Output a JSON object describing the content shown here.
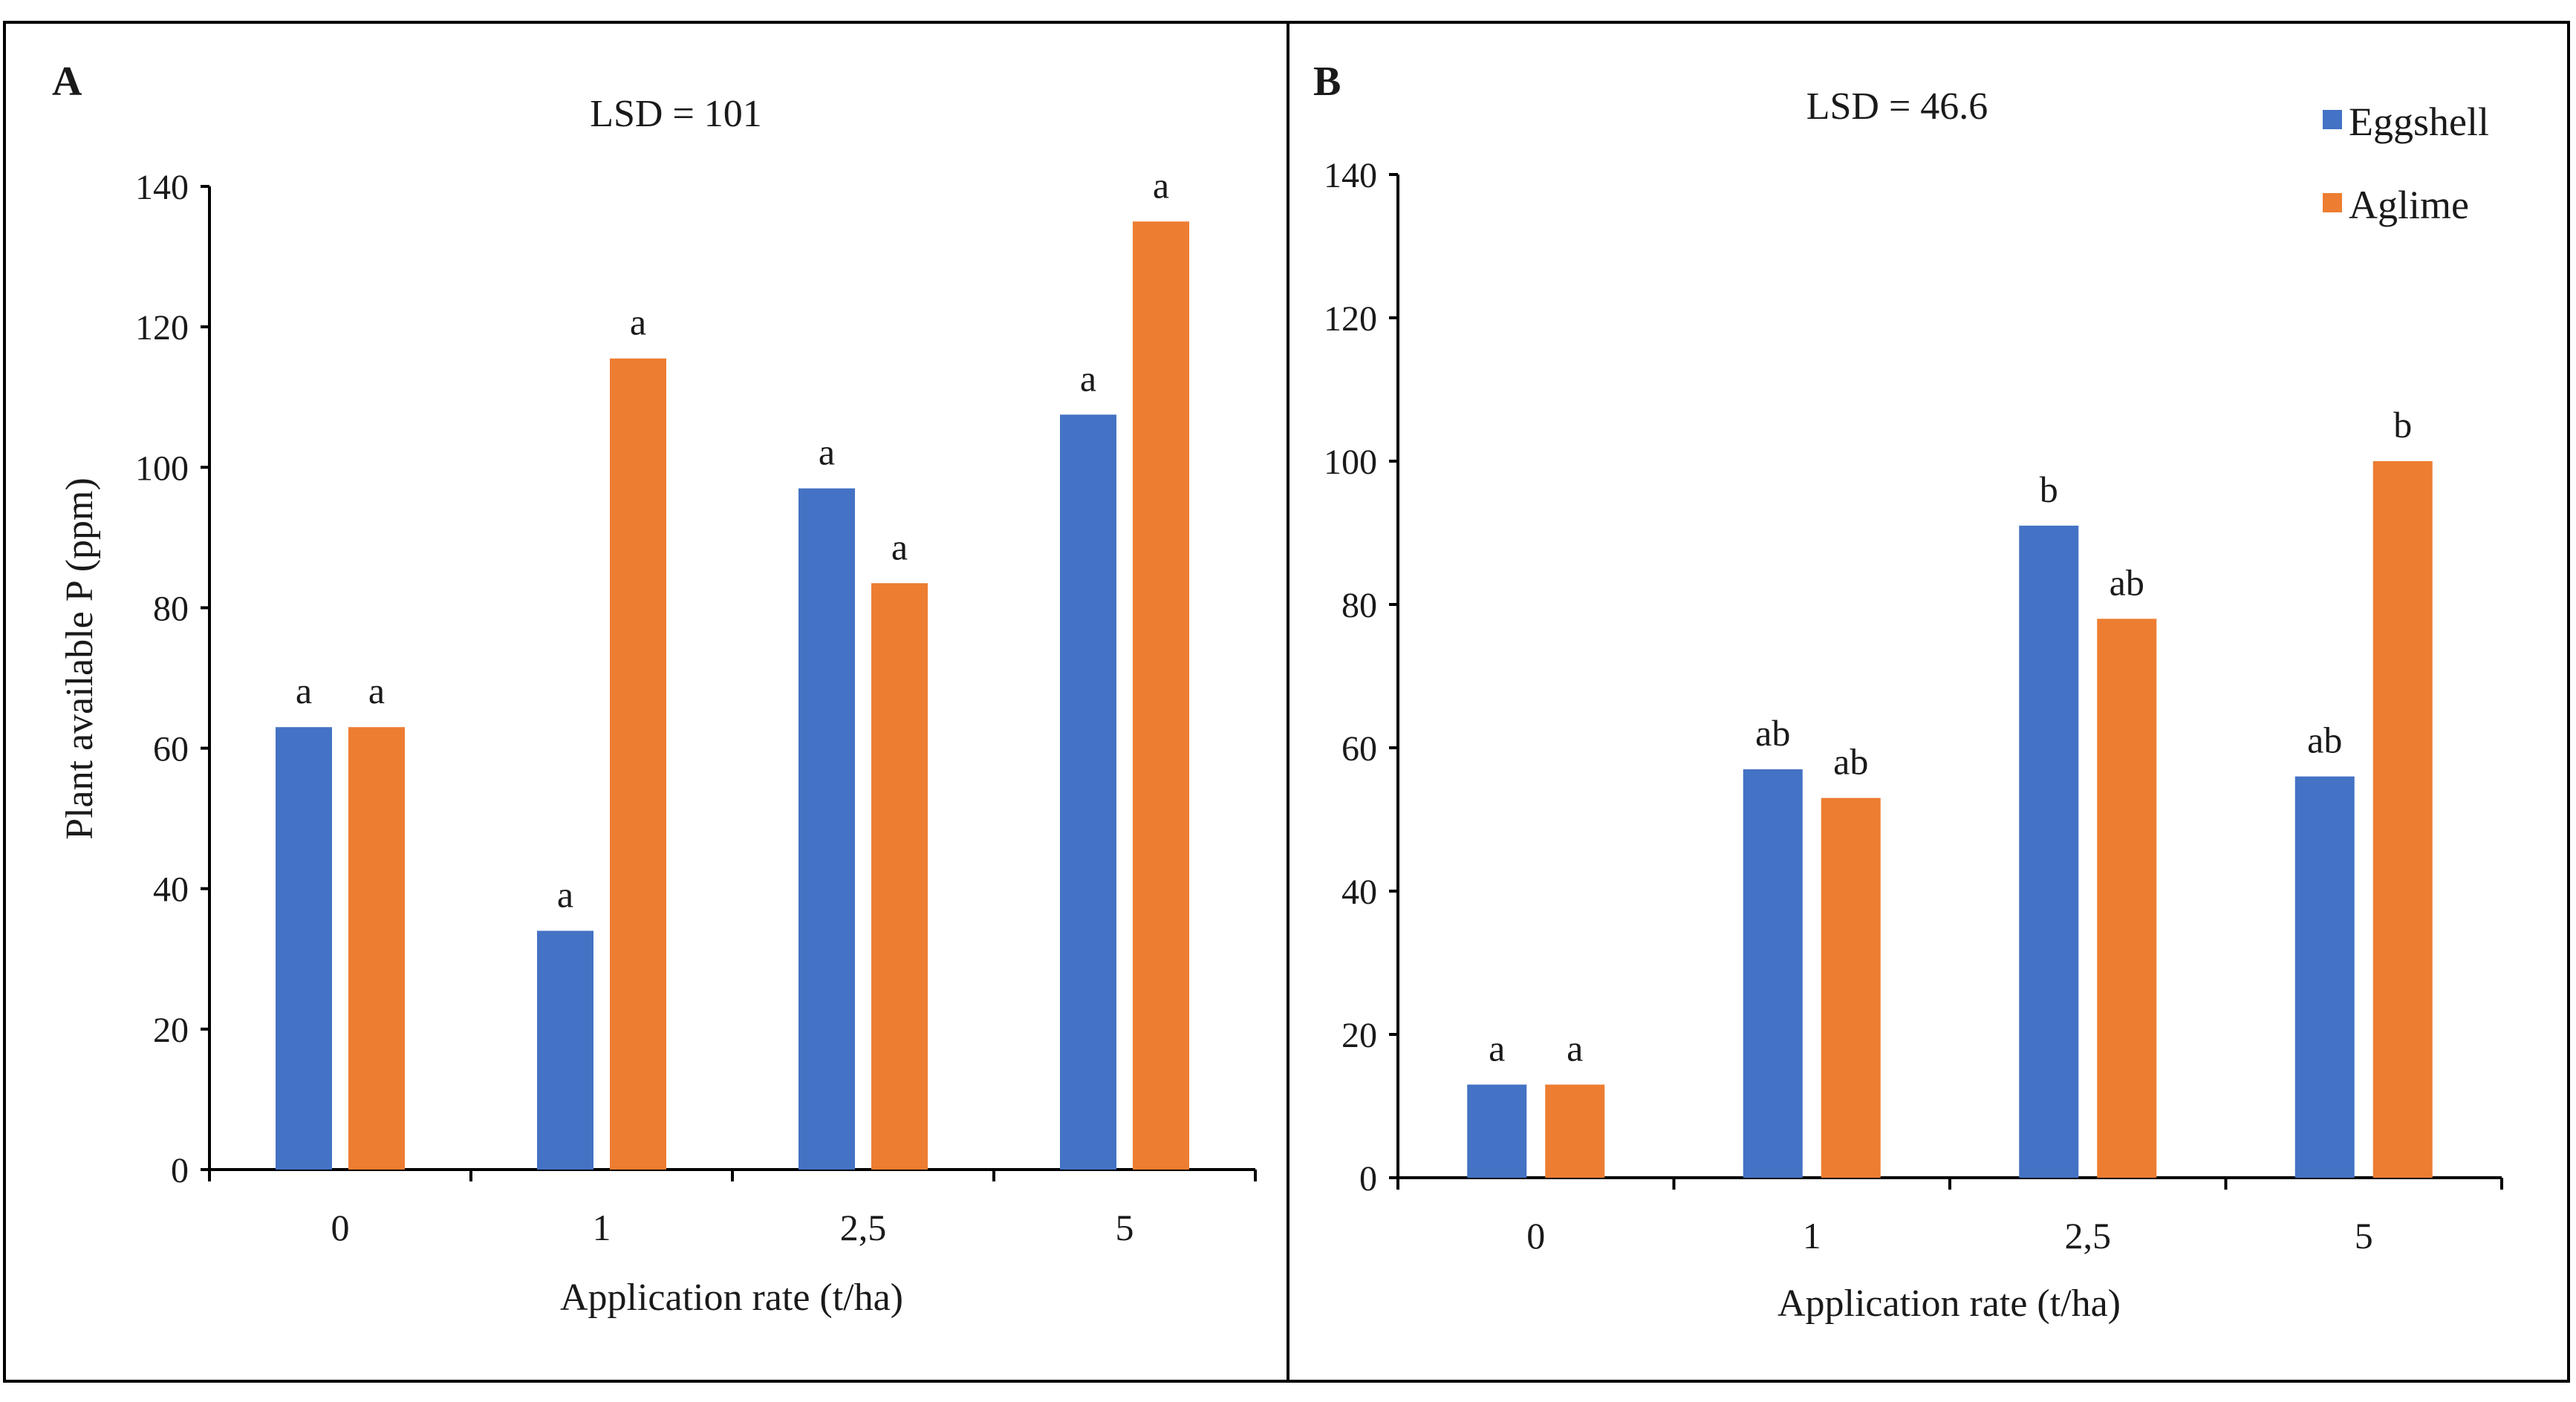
{
  "colors": {
    "eggshell": "#4472C4",
    "aglime": "#ED7D31",
    "axis": "#000000",
    "frame": "#000000"
  },
  "legend": {
    "items": [
      {
        "label": "Eggshell",
        "color": "#4472C4"
      },
      {
        "label": "Aglime",
        "color": "#ED7D31"
      }
    ]
  },
  "chart_data": [
    {
      "type": "bar",
      "panel": "A",
      "title": "LSD = 101",
      "categories": [
        "0",
        "1",
        "2,5",
        "5"
      ],
      "xlabel": "Application rate (t/ha)",
      "ylabel": "Plant available P (ppm)",
      "ylim": [
        0,
        140
      ],
      "yticks": [
        "0",
        "20",
        "40",
        "60",
        "80",
        "100",
        "120",
        "140"
      ],
      "grid": false,
      "series": [
        {
          "name": "Eggshell",
          "values": [
            63,
            34,
            97,
            107.5
          ],
          "letters": [
            "a",
            "a",
            "a",
            "a"
          ]
        },
        {
          "name": "Aglime",
          "values": [
            63,
            115.5,
            83.5,
            135
          ],
          "letters": [
            "a",
            "a",
            "a",
            "a"
          ]
        }
      ]
    },
    {
      "type": "bar",
      "panel": "B",
      "title": "LSD = 46.6",
      "categories": [
        "0",
        "1",
        "2,5",
        "5"
      ],
      "xlabel": "Application rate (t/ha)",
      "ylabel": "",
      "ylim": [
        0,
        140
      ],
      "yticks": [
        "0",
        "20",
        "40",
        "60",
        "80",
        "100",
        "120",
        "140"
      ],
      "grid": false,
      "legend_position": "top-right",
      "series": [
        {
          "name": "Eggshell",
          "values": [
            13,
            57,
            91,
            56
          ],
          "letters": [
            "a",
            "ab",
            "b",
            "ab"
          ]
        },
        {
          "name": "Aglime",
          "values": [
            13,
            53,
            78,
            100
          ],
          "letters": [
            "a",
            "ab",
            "ab",
            "b"
          ]
        }
      ]
    }
  ]
}
